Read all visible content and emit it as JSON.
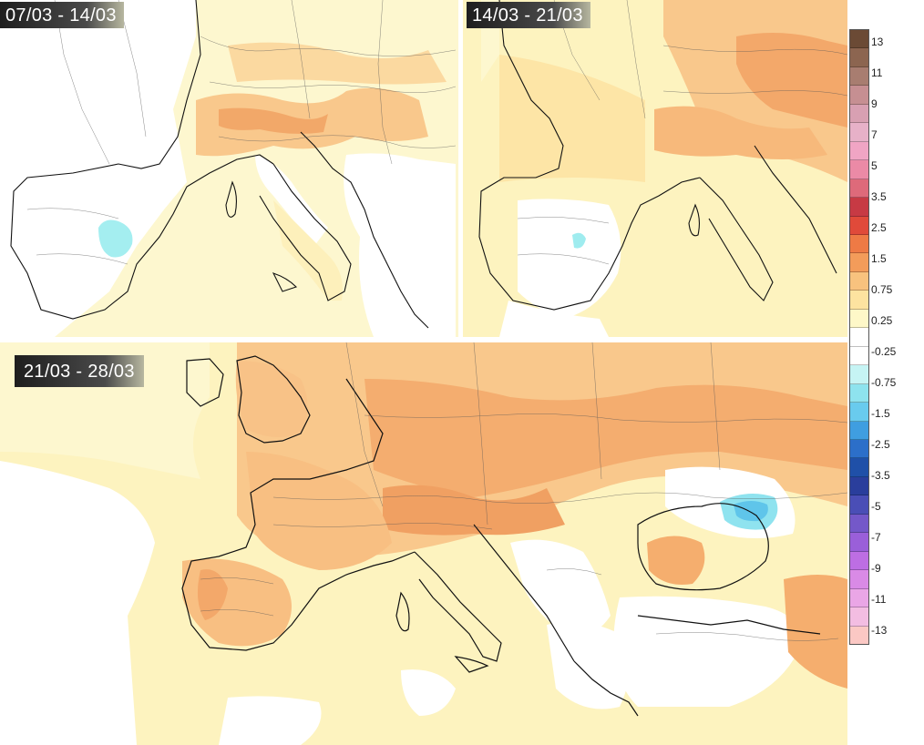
{
  "panels": [
    {
      "period": "07/03 - 14/03"
    },
    {
      "period": "14/03 - 21/03"
    },
    {
      "period": "21/03 - 28/03"
    }
  ],
  "legend": {
    "labels": [
      "13",
      "11",
      "9",
      "7",
      "5",
      "3.5",
      "2.5",
      "1.5",
      "0.75",
      "0.25",
      "-0.25",
      "-0.75",
      "-1.5",
      "-2.5",
      "-3.5",
      "-5",
      "-7",
      "-9",
      "-11",
      "-13"
    ],
    "colors": [
      "#6b4a35",
      "#8c6550",
      "#a87d70",
      "#c68f92",
      "#d8a0b2",
      "#e7b1c8",
      "#f0a5c4",
      "#eb8aa6",
      "#de6a7a",
      "#c73a44",
      "#e04a3a",
      "#ee7a45",
      "#f39c5a",
      "#f8c27e",
      "#fde3a0",
      "#fef8c8",
      "#ffffff",
      "#ffffff",
      "#c6f4f4",
      "#8ee3ee",
      "#69cbee",
      "#3f9ee0",
      "#2c6fc9",
      "#1f50a8",
      "#2a3e9c",
      "#4a4eb6",
      "#7458c9",
      "#9a5fd9",
      "#bd6ee3",
      "#d98ae6",
      "#eaa6e6",
      "#f3bde2",
      "#fbc8c4"
    ]
  }
}
